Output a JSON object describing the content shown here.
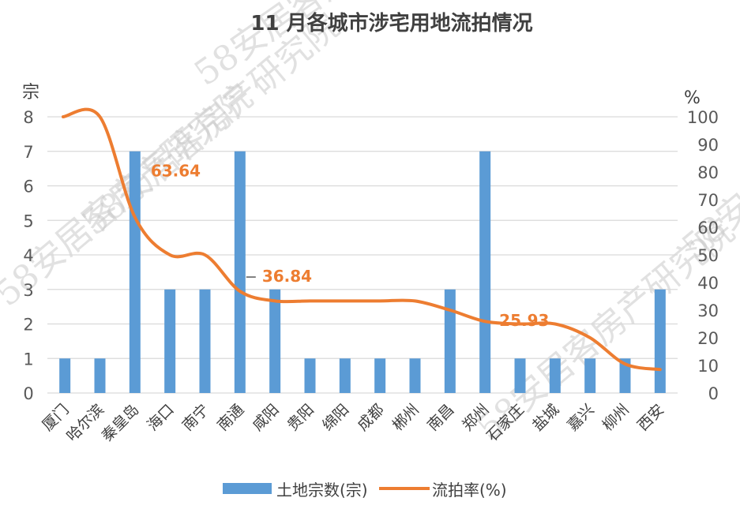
{
  "colors": {
    "bar": "#5B9BD5",
    "line": "#ED7D31",
    "grid": "#D9D9D9",
    "text": "#404040"
  },
  "watermark": "58安居客房产研究院",
  "chart_data": {
    "type": "bar",
    "title": "11 月各城市涉宅用地流拍情况",
    "categories": [
      "厦门",
      "哈尔滨",
      "秦皇岛",
      "海口",
      "南宁",
      "南通",
      "咸阳",
      "贵阳",
      "绵阳",
      "成都",
      "郴州",
      "南昌",
      "郑州",
      "石家庄",
      "盐城",
      "嘉兴",
      "柳州",
      "西安"
    ],
    "y_left": {
      "label": "宗",
      "ylim": [
        0,
        8
      ],
      "ticks": [
        "0",
        "1",
        "2",
        "3",
        "4",
        "5",
        "6",
        "7",
        "8"
      ]
    },
    "y_right": {
      "label": "%",
      "ylim": [
        0,
        100
      ],
      "ticks": [
        "0",
        "10",
        "20",
        "30",
        "40",
        "50",
        "60",
        "70",
        "80",
        "90",
        "100"
      ]
    },
    "grid": true,
    "legend_position": "bottom",
    "series": [
      {
        "name": "土地宗数(宗)",
        "type": "bar",
        "axis": "left",
        "values": [
          1,
          1,
          7,
          3,
          3,
          7,
          3,
          1,
          1,
          1,
          1,
          3,
          7,
          1,
          1,
          1,
          1,
          3
        ]
      },
      {
        "name": "流拍率(%)",
        "type": "line",
        "axis": "right",
        "smooth": true,
        "values": [
          100,
          100,
          63.64,
          50,
          50,
          36.84,
          33.33,
          33.33,
          33.33,
          33.33,
          33.33,
          30,
          25.93,
          25,
          25,
          20,
          10.5,
          8.5
        ]
      }
    ],
    "annotations": [
      {
        "text": "63.64",
        "category": "秦皇岛"
      },
      {
        "text": "36.84",
        "category": "南通"
      },
      {
        "text": "25.93",
        "category": "郑州"
      }
    ]
  }
}
